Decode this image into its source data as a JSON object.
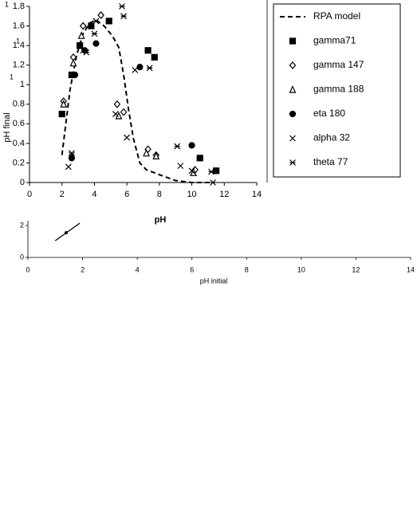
{
  "chart_data": [
    {
      "type": "scatter",
      "x_label": "pH",
      "y_label": "pH final",
      "xlim": [
        0,
        14
      ],
      "xticks": [
        0,
        2,
        4,
        6,
        8,
        10,
        12,
        14
      ],
      "ylim": [
        0,
        1.8
      ],
      "yticks": [
        0,
        0.2,
        0.4,
        0.6,
        0.8,
        1,
        1.2,
        1.4,
        1.6,
        1.8
      ],
      "grid": false,
      "legend": "right",
      "series": [
        {
          "name": "RPA model",
          "kind": "line",
          "dash": true,
          "color": "#000000",
          "x": [
            2.0,
            2.2,
            2.5,
            2.9,
            3.3,
            3.7,
            4.1,
            4.6,
            5.1,
            5.5,
            5.8,
            6.1,
            6.4,
            6.8,
            7.2,
            8.0,
            9.0,
            10.0,
            11.4
          ],
          "values": [
            0.28,
            0.55,
            0.95,
            1.3,
            1.52,
            1.63,
            1.66,
            1.6,
            1.5,
            1.38,
            1.1,
            0.75,
            0.45,
            0.2,
            0.13,
            0.08,
            0.02,
            0.0,
            0.0
          ]
        },
        {
          "name": "gamma71",
          "marker": "square",
          "color": "#000000",
          "x": [
            2.0,
            2.6,
            3.1,
            3.8,
            4.9,
            7.3,
            7.7,
            10.5,
            11.5
          ],
          "values": [
            0.7,
            1.1,
            1.4,
            1.6,
            1.65,
            1.35,
            1.28,
            0.25,
            0.12
          ]
        },
        {
          "name": "gamma 147",
          "marker": "diamond",
          "color": "#000000",
          "x": [
            2.1,
            2.7,
            3.3,
            4.4,
            5.4,
            5.8,
            7.3,
            7.8,
            10.2
          ],
          "values": [
            0.83,
            1.28,
            1.6,
            1.71,
            0.8,
            0.72,
            0.34,
            0.28,
            0.13
          ]
        },
        {
          "name": "gamma 188",
          "marker": "triangle",
          "color": "#000000",
          "x": [
            2.1,
            2.7,
            3.2,
            5.5,
            7.2,
            7.8,
            10.1
          ],
          "values": [
            0.8,
            1.22,
            1.5,
            0.68,
            0.3,
            0.27,
            0.1
          ]
        },
        {
          "name": "eta 180",
          "marker": "circle",
          "color": "#000000",
          "x": [
            2.6,
            2.8,
            3.4,
            4.1,
            6.8,
            10.0,
            11.5
          ],
          "values": [
            0.25,
            1.1,
            1.35,
            1.42,
            1.18,
            0.38,
            0.12
          ]
        },
        {
          "name": "alpha 32",
          "marker": "cross",
          "color": "#000000",
          "x": [
            2.4,
            2.6,
            3.3,
            5.3,
            6.0,
            6.5,
            9.3,
            10.0,
            11.3
          ],
          "values": [
            0.16,
            0.3,
            1.35,
            0.7,
            0.46,
            1.15,
            0.17,
            0.12,
            0.0
          ]
        },
        {
          "name": "theta 77",
          "marker": "asterisk",
          "color": "#000000",
          "x": [
            2.6,
            3.5,
            4.0,
            4.1,
            5.7,
            5.8,
            7.4,
            9.1,
            11.2
          ],
          "values": [
            0.28,
            1.33,
            1.52,
            1.65,
            1.8,
            1.7,
            1.17,
            0.37,
            0.11
          ]
        }
      ],
      "fragments": [
        "1",
        "1",
        "1"
      ]
    },
    {
      "type": "line",
      "x_label": "pH initial",
      "xlim": [
        0,
        14
      ],
      "xticks": [
        0,
        2,
        4,
        6,
        8,
        10,
        12,
        14
      ],
      "ylim": [
        0,
        2
      ],
      "yticks": [
        0,
        2
      ],
      "series": [
        {
          "kind": "line",
          "color": "#000000",
          "x": [
            1.0,
            1.9
          ],
          "values": [
            1.05,
            2.15
          ]
        },
        {
          "marker": "circle",
          "color": "#000000",
          "x": [
            1.4
          ],
          "values": [
            1.55
          ]
        }
      ]
    }
  ]
}
